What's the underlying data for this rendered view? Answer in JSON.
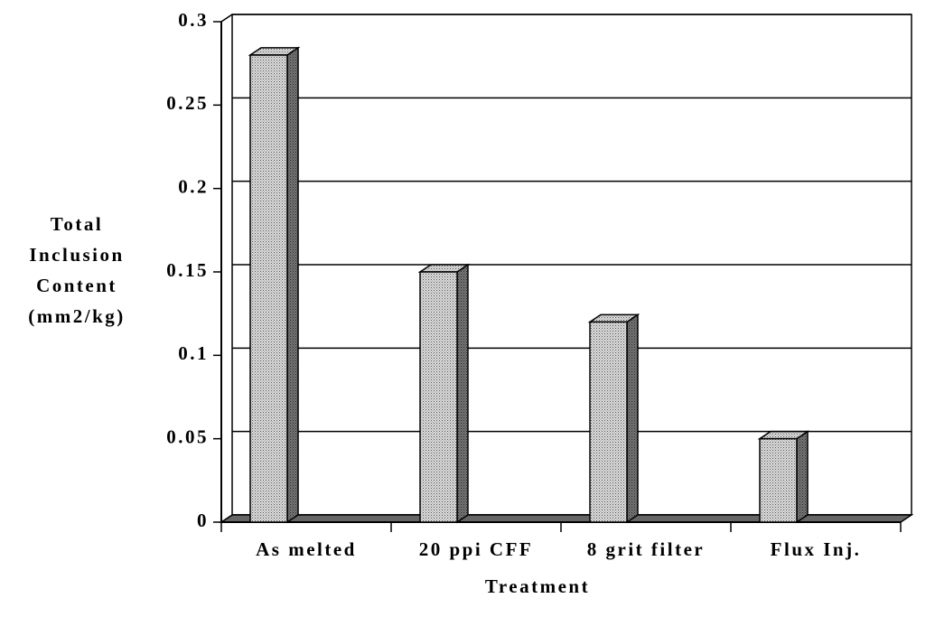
{
  "chart_data": {
    "type": "bar3d",
    "categories": [
      "As melted",
      "20 ppi CFF",
      "8 grit filter",
      "Flux Inj."
    ],
    "values": [
      0.28,
      0.15,
      0.12,
      0.05
    ],
    "color": "#dcdcdc",
    "ylabel": [
      "Total",
      "Inclusion",
      "Content",
      "(mm2/kg)"
    ],
    "xlabel": "Treatment",
    "ylim": [
      0,
      0.3
    ],
    "yticks": [
      0,
      0.05,
      0.1,
      0.15,
      0.2,
      0.25,
      0.3
    ],
    "grid": true
  }
}
